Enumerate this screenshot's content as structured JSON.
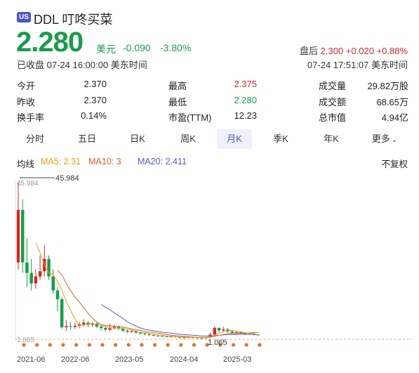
{
  "header": {
    "market_badge": "US",
    "symbol": "DDL 叮咚买菜",
    "price": "2.280",
    "currency": "美元",
    "change": "-0.090",
    "change_pct": "-3.80%",
    "status": "已收盘 07-24 16:00:00 美东时间",
    "after_hours_label": "盘后",
    "after_hours_price": "2.300",
    "after_hours_change": "+0.020",
    "after_hours_pct": "+0.88%",
    "after_hours_time": "07-24 17:51:07 美东时间"
  },
  "stats": {
    "open_label": "今开",
    "open": "2.370",
    "high_label": "最高",
    "high": "2.375",
    "volume_label": "成交量",
    "volume": "29.82万股",
    "prev_label": "昨收",
    "prev": "2.370",
    "low_label": "最低",
    "low": "2.280",
    "turnover_label": "成交额",
    "turnover": "68.65万",
    "turnover_rate_label": "换手率",
    "turnover_rate": "0.14%",
    "pe_label": "市盈(TTM)",
    "pe": "12.23",
    "mcap_label": "总市值",
    "mcap": "4.94亿"
  },
  "tabs": [
    {
      "label": "分时"
    },
    {
      "label": "五日"
    },
    {
      "label": "日K"
    },
    {
      "label": "周K"
    },
    {
      "label": "月K"
    },
    {
      "label": "季K"
    },
    {
      "label": "年K"
    },
    {
      "label": "更多"
    }
  ],
  "ma": {
    "label": "均线",
    "ma5": "MA5: 2.31",
    "ma10": "MA10: 3",
    "ma20": "MA20: 2.411",
    "adjust": "不复权"
  },
  "colors": {
    "up": "#d12a2a",
    "down": "#1a9c4a",
    "accent": "#4a55c8",
    "ma5": "#e8a21c",
    "ma10": "#e0602a",
    "ma20": "#5860c8"
  },
  "chart_data": {
    "type": "candlestick",
    "max_label": "45.984",
    "min_label": "1.065",
    "y_max_tick": "45.984",
    "y_min_tick": "1.065",
    "ylim": [
      1.065,
      45.984
    ],
    "x_ticks": [
      "2021-06",
      "2022-06",
      "2023-05",
      "2024-04",
      "2025-03"
    ],
    "candles": [
      {
        "o": 23.0,
        "c": 38.0,
        "h": 45.984,
        "l": 21.0
      },
      {
        "o": 38.0,
        "c": 23.0,
        "h": 41.0,
        "l": 20.0
      },
      {
        "o": 23.0,
        "c": 20.0,
        "h": 30.0,
        "l": 16.0
      },
      {
        "o": 20.0,
        "c": 17.0,
        "h": 24.0,
        "l": 15.0
      },
      {
        "o": 17.0,
        "c": 19.0,
        "h": 21.0,
        "l": 15.5
      },
      {
        "o": 19.0,
        "c": 20.5,
        "h": 25.0,
        "l": 18.0
      },
      {
        "o": 20.5,
        "c": 24.0,
        "h": 28.0,
        "l": 19.0
      },
      {
        "o": 24.0,
        "c": 19.0,
        "h": 25.0,
        "l": 18.0
      },
      {
        "o": 19.0,
        "c": 15.0,
        "h": 21.0,
        "l": 14.0
      },
      {
        "o": 15.0,
        "c": 12.5,
        "h": 16.0,
        "l": 9.0
      },
      {
        "o": 12.5,
        "c": 4.5,
        "h": 13.0,
        "l": 4.0
      },
      {
        "o": 4.5,
        "c": 4.8,
        "h": 6.5,
        "l": 3.5
      },
      {
        "o": 4.8,
        "c": 4.6,
        "h": 6.0,
        "l": 3.8
      },
      {
        "o": 4.6,
        "c": 4.9,
        "h": 5.8,
        "l": 4.0
      },
      {
        "o": 4.9,
        "c": 5.3,
        "h": 6.0,
        "l": 4.2
      },
      {
        "o": 5.3,
        "c": 5.8,
        "h": 6.8,
        "l": 4.8
      },
      {
        "o": 5.8,
        "c": 5.2,
        "h": 6.2,
        "l": 4.5
      },
      {
        "o": 5.2,
        "c": 5.6,
        "h": 6.0,
        "l": 4.6
      },
      {
        "o": 5.6,
        "c": 4.7,
        "h": 5.9,
        "l": 4.2
      },
      {
        "o": 4.7,
        "c": 4.3,
        "h": 5.2,
        "l": 3.6
      },
      {
        "o": 4.3,
        "c": 3.8,
        "h": 4.8,
        "l": 3.3
      },
      {
        "o": 3.8,
        "c": 4.2,
        "h": 5.5,
        "l": 3.4
      },
      {
        "o": 4.2,
        "c": 4.6,
        "h": 5.2,
        "l": 3.9
      },
      {
        "o": 4.6,
        "c": 4.1,
        "h": 5.0,
        "l": 3.6
      },
      {
        "o": 4.1,
        "c": 3.5,
        "h": 4.4,
        "l": 3.1
      },
      {
        "o": 3.5,
        "c": 3.2,
        "h": 3.8,
        "l": 2.8
      },
      {
        "o": 3.2,
        "c": 3.4,
        "h": 3.7,
        "l": 2.9
      },
      {
        "o": 3.4,
        "c": 3.0,
        "h": 3.6,
        "l": 2.6
      },
      {
        "o": 3.0,
        "c": 2.7,
        "h": 3.2,
        "l": 2.4
      },
      {
        "o": 2.7,
        "c": 2.5,
        "h": 2.9,
        "l": 2.2
      },
      {
        "o": 2.5,
        "c": 2.3,
        "h": 2.7,
        "l": 2.0
      },
      {
        "o": 2.3,
        "c": 2.1,
        "h": 2.5,
        "l": 1.9
      },
      {
        "o": 2.1,
        "c": 2.0,
        "h": 2.3,
        "l": 1.8
      },
      {
        "o": 2.0,
        "c": 1.9,
        "h": 2.2,
        "l": 1.7
      },
      {
        "o": 1.9,
        "c": 1.8,
        "h": 2.0,
        "l": 1.6
      },
      {
        "o": 1.8,
        "c": 1.9,
        "h": 2.1,
        "l": 1.6
      },
      {
        "o": 1.9,
        "c": 1.7,
        "h": 2.0,
        "l": 1.5
      },
      {
        "o": 1.7,
        "c": 1.6,
        "h": 1.8,
        "l": 1.3
      },
      {
        "o": 1.6,
        "c": 1.5,
        "h": 1.7,
        "l": 1.3
      },
      {
        "o": 1.5,
        "c": 1.7,
        "h": 1.9,
        "l": 1.4
      },
      {
        "o": 1.7,
        "c": 1.6,
        "h": 1.8,
        "l": 1.3
      },
      {
        "o": 1.6,
        "c": 1.5,
        "h": 1.7,
        "l": 1.2
      },
      {
        "o": 1.5,
        "c": 1.4,
        "h": 1.6,
        "l": 1.065
      },
      {
        "o": 1.4,
        "c": 1.6,
        "h": 1.7,
        "l": 1.2
      },
      {
        "o": 1.6,
        "c": 2.4,
        "h": 3.0,
        "l": 1.5
      },
      {
        "o": 2.4,
        "c": 4.3,
        "h": 4.8,
        "l": 2.3
      },
      {
        "o": 4.3,
        "c": 3.6,
        "h": 4.5,
        "l": 3.0
      },
      {
        "o": 3.6,
        "c": 3.9,
        "h": 4.6,
        "l": 3.2
      },
      {
        "o": 3.9,
        "c": 3.3,
        "h": 4.2,
        "l": 2.9
      },
      {
        "o": 3.3,
        "c": 2.9,
        "h": 3.6,
        "l": 2.6
      },
      {
        "o": 2.9,
        "c": 3.1,
        "h": 3.5,
        "l": 2.7
      },
      {
        "o": 3.1,
        "c": 2.8,
        "h": 3.3,
        "l": 2.4
      },
      {
        "o": 2.8,
        "c": 2.5,
        "h": 3.0,
        "l": 2.2
      },
      {
        "o": 2.5,
        "c": 2.6,
        "h": 2.9,
        "l": 2.3
      },
      {
        "o": 2.6,
        "c": 2.37,
        "h": 2.8,
        "l": 2.2
      },
      {
        "o": 2.37,
        "c": 2.28,
        "h": 2.375,
        "l": 2.28
      }
    ],
    "ma5": [
      null,
      null,
      null,
      null,
      28.6,
      25.8,
      22.3,
      20.1,
      19.5,
      17.5,
      15.0,
      11.9,
      9.3,
      6.8,
      4.9,
      5.1,
      5.3,
      5.5,
      5.4,
      5.0,
      4.7,
      4.4,
      4.3,
      4.2,
      4.1,
      3.9,
      3.7,
      3.4,
      3.1,
      2.9,
      2.7,
      2.5,
      2.3,
      2.2,
      2.0,
      1.9,
      1.8,
      1.7,
      1.7,
      1.6,
      1.6,
      1.5,
      1.5,
      1.5,
      1.7,
      2.3,
      2.8,
      3.2,
      3.5,
      3.6,
      3.4,
      3.2,
      2.9,
      2.8,
      2.7,
      2.31
    ],
    "ma10": [
      null,
      null,
      null,
      null,
      null,
      null,
      null,
      null,
      null,
      20.8,
      19.4,
      17.0,
      14.9,
      13.1,
      11.7,
      10.0,
      8.5,
      7.1,
      6.0,
      5.3,
      5.0,
      4.9,
      4.8,
      4.7,
      4.5,
      4.3,
      4.0,
      3.8,
      3.6,
      3.3,
      3.1,
      3.0,
      2.8,
      2.6,
      2.4,
      2.2,
      2.1,
      2.0,
      1.9,
      1.8,
      1.7,
      1.6,
      1.6,
      1.6,
      1.7,
      1.9,
      2.2,
      2.4,
      2.6,
      2.7,
      2.7,
      2.8,
      2.8,
      2.9,
      3.0,
      3.0
    ],
    "ma20": [
      null,
      null,
      null,
      null,
      null,
      null,
      null,
      null,
      null,
      null,
      null,
      null,
      null,
      null,
      null,
      null,
      null,
      null,
      null,
      11.0,
      10.2,
      9.5,
      8.6,
      7.8,
      7.0,
      6.1,
      5.4,
      4.8,
      4.3,
      3.9,
      3.7,
      3.5,
      3.3,
      3.1,
      2.9,
      2.8,
      2.6,
      2.5,
      2.4,
      2.3,
      2.2,
      2.1,
      2.0,
      2.0,
      2.0,
      2.1,
      2.2,
      2.3,
      2.4,
      2.4,
      2.4,
      2.5,
      2.5,
      2.5,
      2.4,
      2.411
    ]
  }
}
